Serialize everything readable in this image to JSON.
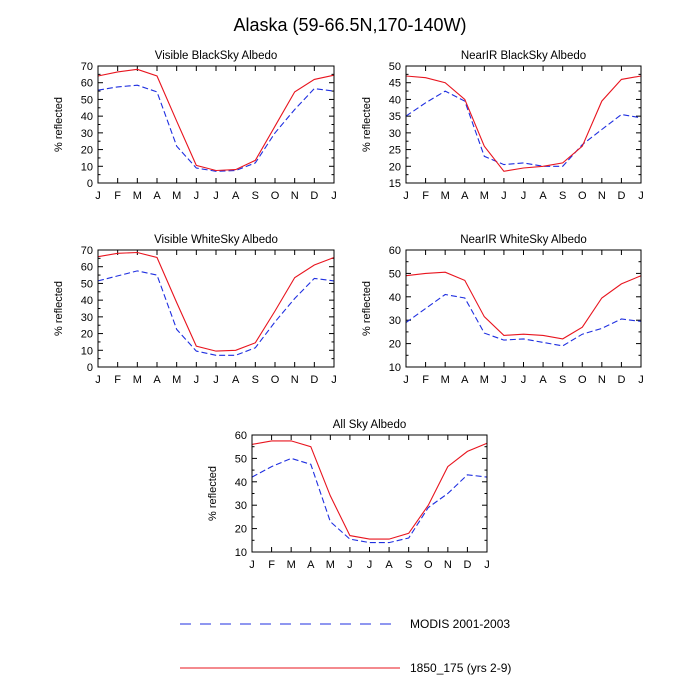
{
  "figure": {
    "title": "Alaska (59-66.5N,170-140W)"
  },
  "legend": {
    "items": [
      {
        "label": "MODIS 2001-2003",
        "color": "#1f2fe0",
        "style": "dashed"
      },
      {
        "label": "1850_175 (yrs 2-9)",
        "color": "#e8141e",
        "style": "solid"
      }
    ]
  },
  "chart_data": [
    {
      "type": "line",
      "title": "Visible BlackSky Albedo",
      "ylabel": "% reflected",
      "xlabel": "",
      "categories": [
        "J",
        "F",
        "M",
        "A",
        "M",
        "J",
        "J",
        "A",
        "S",
        "O",
        "N",
        "D",
        "J"
      ],
      "ylim": [
        0,
        70
      ],
      "yticks": [
        0,
        10,
        20,
        30,
        40,
        50,
        60,
        70
      ],
      "series": [
        {
          "name": "MODIS 2001-2003",
          "color": "#1f2fe0",
          "style": "dashed",
          "values": [
            55.5,
            57.5,
            58.5,
            54.5,
            22,
            9,
            7,
            7.5,
            12,
            30,
            44,
            56.5,
            55
          ]
        },
        {
          "name": "1850_175 (yrs 2-9)",
          "color": "#e8141e",
          "style": "solid",
          "values": [
            64,
            66.5,
            68,
            64,
            37,
            10.5,
            7.5,
            8,
            13.5,
            34,
            54.5,
            62,
            64.5
          ]
        }
      ]
    },
    {
      "type": "line",
      "title": "NearIR BlackSky Albedo",
      "ylabel": "% reflected",
      "xlabel": "",
      "categories": [
        "J",
        "F",
        "M",
        "A",
        "M",
        "J",
        "J",
        "A",
        "S",
        "O",
        "N",
        "D",
        "J"
      ],
      "ylim": [
        15,
        50
      ],
      "yticks": [
        15,
        20,
        25,
        30,
        35,
        40,
        45,
        50
      ],
      "series": [
        {
          "name": "MODIS 2001-2003",
          "color": "#1f2fe0",
          "style": "dashed",
          "values": [
            35,
            39,
            42.5,
            39.5,
            23,
            20.5,
            21,
            20,
            20,
            26.5,
            31,
            35.5,
            34.5
          ]
        },
        {
          "name": "1850_175 (yrs 2-9)",
          "color": "#e8141e",
          "style": "solid",
          "values": [
            47,
            46.5,
            45,
            40,
            26,
            18.5,
            19.5,
            20,
            21,
            26,
            39.5,
            46,
            47
          ]
        }
      ]
    },
    {
      "type": "line",
      "title": "Visible WhiteSky Albedo",
      "ylabel": "% reflected",
      "xlabel": "",
      "categories": [
        "J",
        "F",
        "M",
        "A",
        "M",
        "J",
        "J",
        "A",
        "S",
        "O",
        "N",
        "D",
        "J"
      ],
      "ylim": [
        0,
        70
      ],
      "yticks": [
        0,
        10,
        20,
        30,
        40,
        50,
        60,
        70
      ],
      "series": [
        {
          "name": "MODIS 2001-2003",
          "color": "#1f2fe0",
          "style": "dashed",
          "values": [
            51.5,
            54.5,
            57.5,
            55,
            22.5,
            9.5,
            7,
            7,
            11.5,
            27,
            41,
            53,
            51.5
          ]
        },
        {
          "name": "1850_175 (yrs 2-9)",
          "color": "#e8141e",
          "style": "solid",
          "values": [
            66,
            68,
            68.5,
            65.5,
            38.5,
            12.5,
            9.5,
            10,
            14.5,
            33.5,
            53.5,
            61,
            65.5
          ]
        }
      ]
    },
    {
      "type": "line",
      "title": "NearIR WhiteSky Albedo",
      "ylabel": "% reflected",
      "xlabel": "",
      "categories": [
        "J",
        "F",
        "M",
        "A",
        "M",
        "J",
        "J",
        "A",
        "S",
        "O",
        "N",
        "D",
        "J"
      ],
      "ylim": [
        10,
        60
      ],
      "yticks": [
        10,
        20,
        30,
        40,
        50,
        60
      ],
      "series": [
        {
          "name": "MODIS 2001-2003",
          "color": "#1f2fe0",
          "style": "dashed",
          "values": [
            29,
            35,
            41,
            39.5,
            24.5,
            21.5,
            22,
            20.5,
            19,
            24,
            26.5,
            30.5,
            29.5
          ]
        },
        {
          "name": "1850_175 (yrs 2-9)",
          "color": "#e8141e",
          "style": "solid",
          "values": [
            49,
            50,
            50.5,
            47,
            31.5,
            23.5,
            24,
            23.5,
            22,
            27,
            39.5,
            45.5,
            49
          ]
        }
      ]
    },
    {
      "type": "line",
      "title": "All Sky Albedo",
      "ylabel": "% reflected",
      "xlabel": "",
      "categories": [
        "J",
        "F",
        "M",
        "A",
        "M",
        "J",
        "J",
        "A",
        "S",
        "O",
        "N",
        "D",
        "J"
      ],
      "ylim": [
        10,
        60
      ],
      "yticks": [
        10,
        20,
        30,
        40,
        50,
        60
      ],
      "series": [
        {
          "name": "MODIS 2001-2003",
          "color": "#1f2fe0",
          "style": "dashed",
          "values": [
            42,
            46.5,
            50,
            47.5,
            23,
            15.5,
            14,
            14,
            16,
            29,
            35,
            43,
            42
          ]
        },
        {
          "name": "1850_175 (yrs 2-9)",
          "color": "#e8141e",
          "style": "solid",
          "values": [
            56,
            57.5,
            57.5,
            55,
            34,
            17,
            15.5,
            15.5,
            18,
            30,
            46.5,
            53,
            56.5
          ]
        }
      ]
    }
  ]
}
